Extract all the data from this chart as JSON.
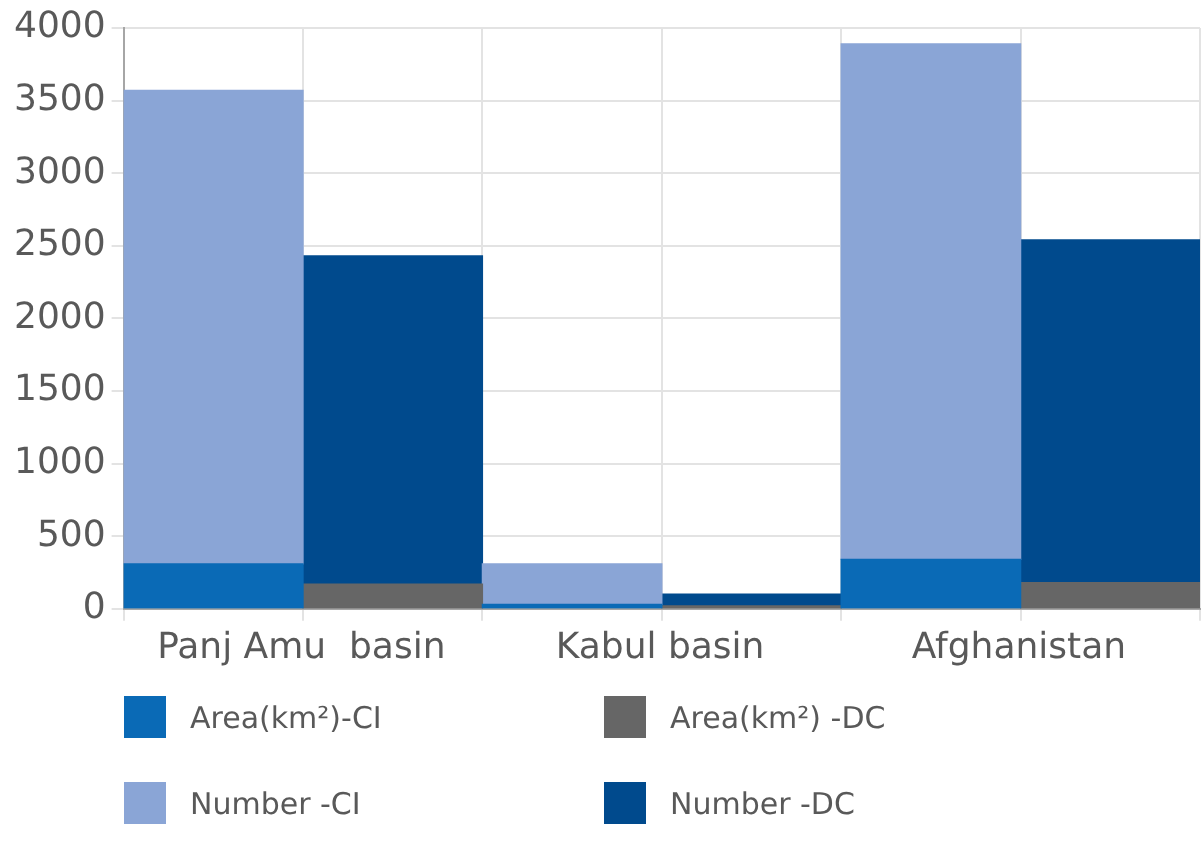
{
  "chart_data": {
    "type": "bar",
    "stacked": true,
    "categories": [
      "Panj Amu  basin",
      null,
      "Kabul basin",
      null,
      "Afghanistan",
      null
    ],
    "series": [
      {
        "name": "Area(km²)-CI",
        "color": "#0a6ab6",
        "values": [
          310,
          null,
          30,
          null,
          340,
          null
        ]
      },
      {
        "name": "Area(km²) -DC",
        "color": "#666666",
        "values": [
          null,
          170,
          null,
          20,
          null,
          180
        ]
      },
      {
        "name": "Number -CI",
        "color": "#8aa5d6",
        "values": [
          3260,
          null,
          280,
          null,
          3550,
          null
        ]
      },
      {
        "name": "Number -DC",
        "color": "#004a8d",
        "values": [
          null,
          2260,
          null,
          80,
          null,
          2360
        ]
      }
    ],
    "ylim": [
      0,
      4000
    ],
    "yticks": [
      0,
      500,
      1000,
      1500,
      2000,
      2500,
      3000,
      3500,
      4000
    ],
    "grid": true,
    "legend": "bottom"
  }
}
